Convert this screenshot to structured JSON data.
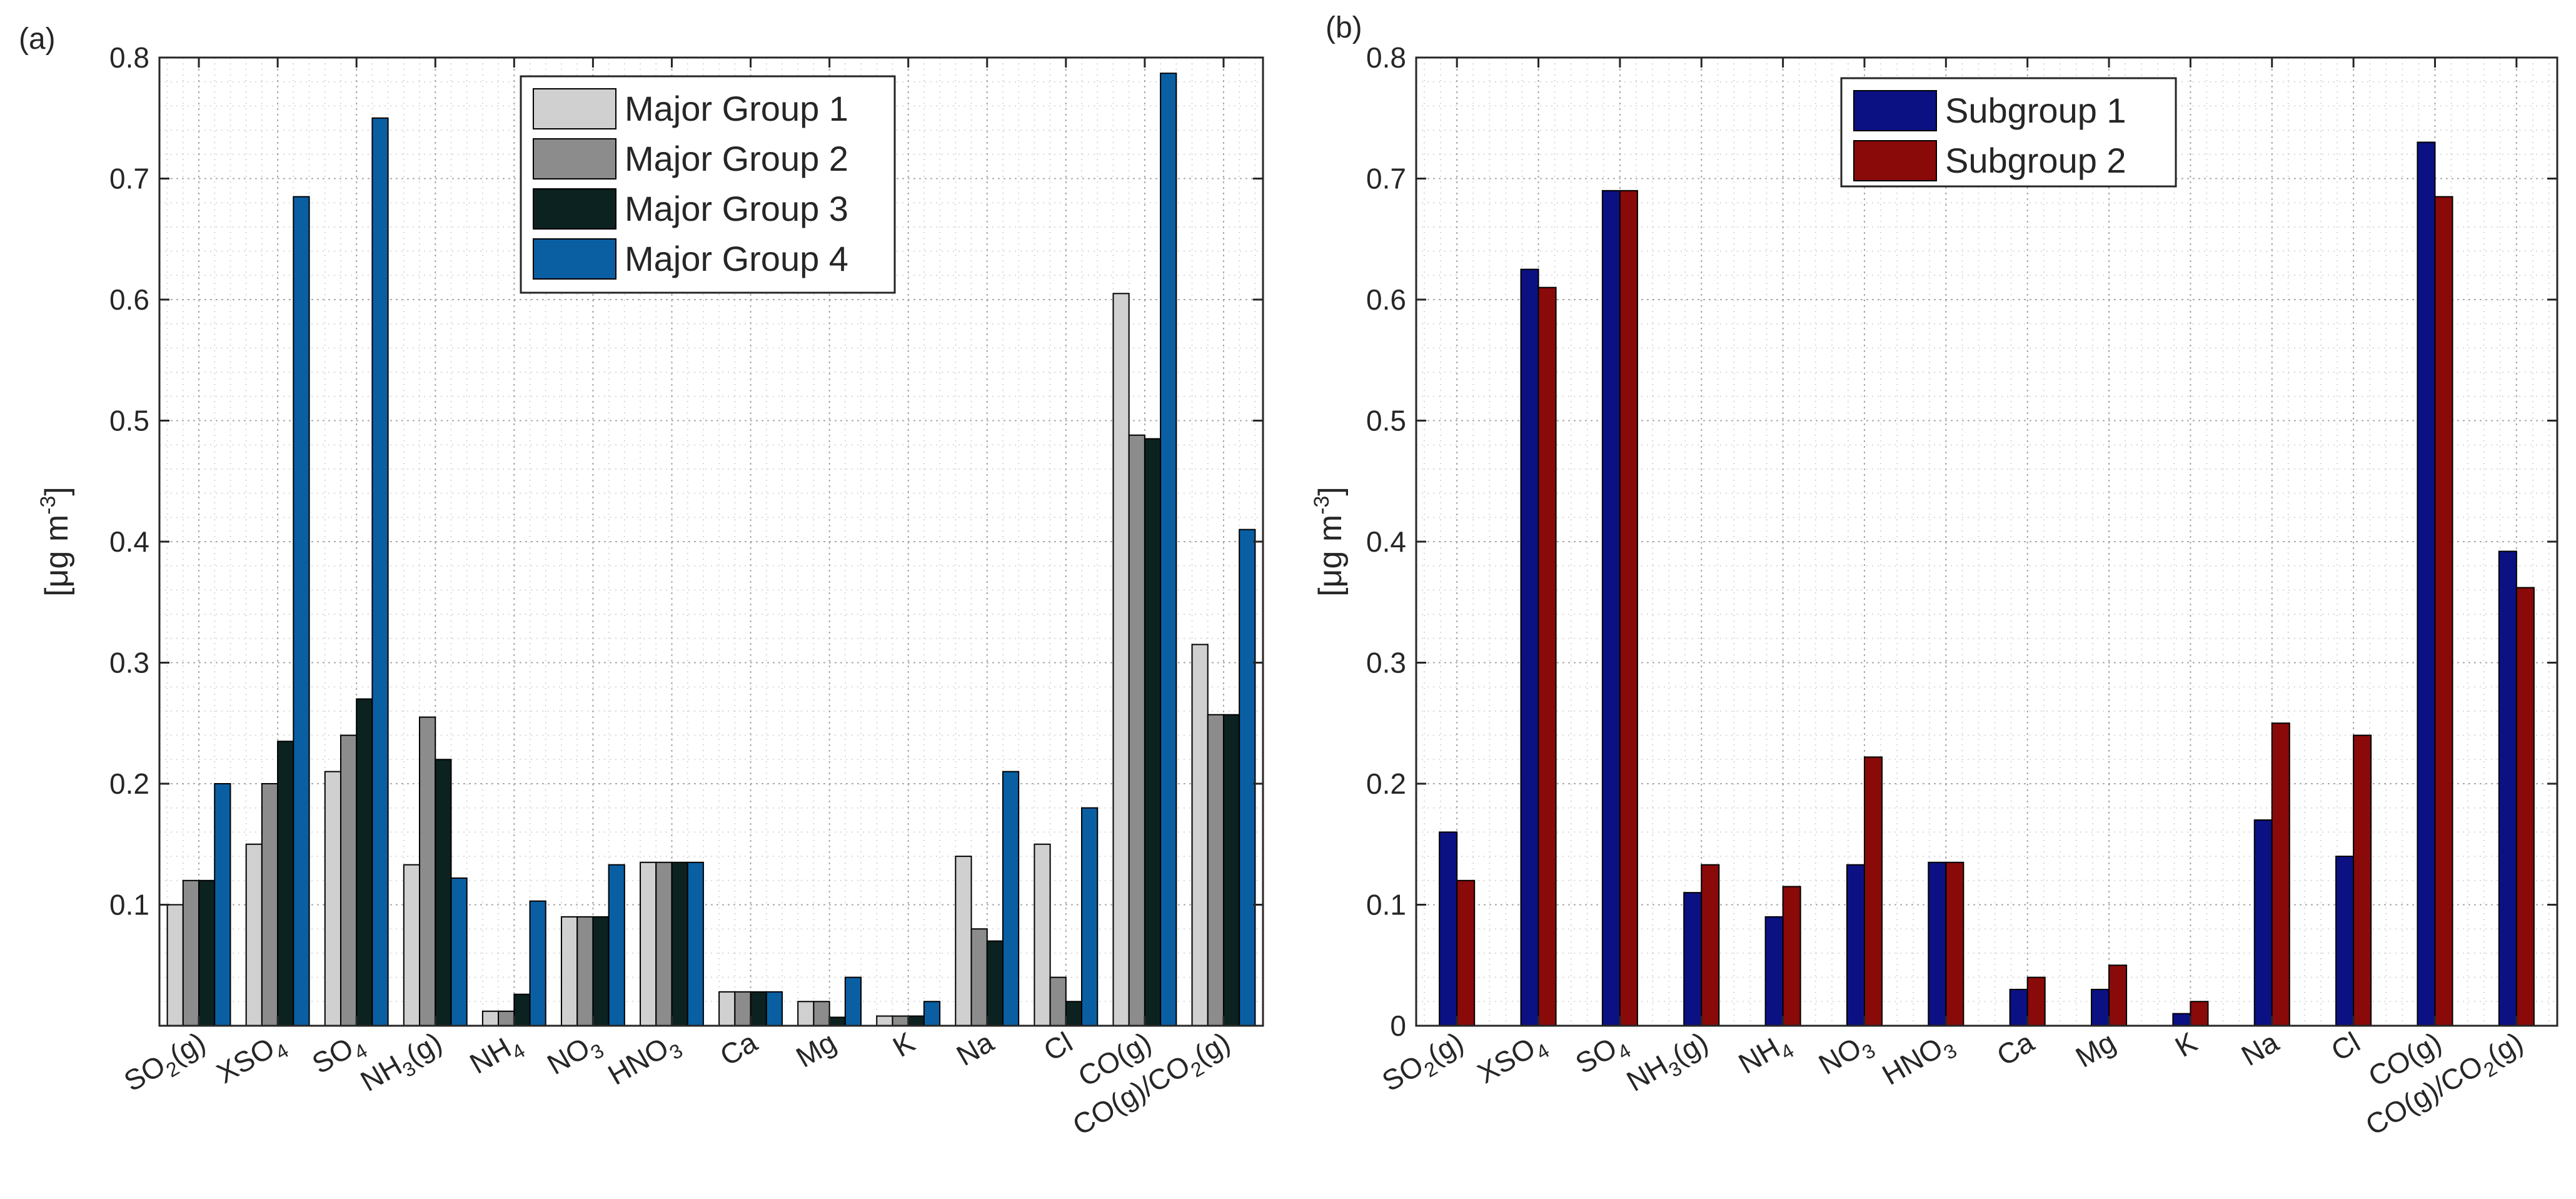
{
  "chart_data": [
    {
      "panel_label": "(a)",
      "type": "bar",
      "ylabel_base": "[μg m",
      "ylabel_sup": "-3",
      "ylabel_end": "]",
      "ylim": [
        0,
        0.8
      ],
      "yticks": [
        "0.1",
        "0.2",
        "0.3",
        "0.4",
        "0.5",
        "0.6",
        "0.7",
        "0.8"
      ],
      "grid": true,
      "legend_position": "top-center",
      "categories": [
        {
          "base": "SO",
          "sub": "2",
          "suffix": "(g)"
        },
        {
          "base": "XSO",
          "sub": "4",
          "suffix": ""
        },
        {
          "base": "SO",
          "sub": "4",
          "suffix": ""
        },
        {
          "base": "NH",
          "sub": "3",
          "suffix": "(g)"
        },
        {
          "base": "NH",
          "sub": "4",
          "suffix": ""
        },
        {
          "base": "NO",
          "sub": "3",
          "suffix": ""
        },
        {
          "base": "HNO",
          "sub": "3",
          "suffix": ""
        },
        {
          "base": "Ca",
          "sub": "",
          "suffix": ""
        },
        {
          "base": "Mg",
          "sub": "",
          "suffix": ""
        },
        {
          "base": "K",
          "sub": "",
          "suffix": ""
        },
        {
          "base": "Na",
          "sub": "",
          "suffix": ""
        },
        {
          "base": "Cl",
          "sub": "",
          "suffix": ""
        },
        {
          "base": "CO(g)",
          "sub": "",
          "suffix": ""
        },
        {
          "base": "CO(g)/CO",
          "sub": "2",
          "suffix": "(g)"
        }
      ],
      "series": [
        {
          "name": "Major Group 1",
          "color": "#d0d0d0",
          "values": [
            0.1,
            0.15,
            0.21,
            0.133,
            0.012,
            0.09,
            0.135,
            0.028,
            0.02,
            0.008,
            0.14,
            0.15,
            0.605,
            0.315
          ]
        },
        {
          "name": "Major Group 2",
          "color": "#8c8c8c",
          "values": [
            0.12,
            0.2,
            0.24,
            0.255,
            0.012,
            0.09,
            0.135,
            0.028,
            0.02,
            0.008,
            0.08,
            0.04,
            0.488,
            0.257
          ]
        },
        {
          "name": "Major Group 3",
          "color": "#0c2220",
          "values": [
            0.12,
            0.235,
            0.27,
            0.22,
            0.026,
            0.09,
            0.135,
            0.028,
            0.007,
            0.008,
            0.07,
            0.02,
            0.485,
            0.257
          ]
        },
        {
          "name": "Major Group 4",
          "color": "#0a5fa3",
          "values": [
            0.2,
            0.685,
            0.75,
            0.122,
            0.103,
            0.133,
            0.135,
            0.028,
            0.04,
            0.02,
            0.21,
            0.18,
            0.787,
            0.41
          ]
        }
      ]
    },
    {
      "panel_label": "(b)",
      "type": "bar",
      "ylabel_base": "[μg m",
      "ylabel_sup": "-3",
      "ylabel_end": "]",
      "ylim": [
        0,
        0.8
      ],
      "yticks": [
        "0",
        "0.1",
        "0.2",
        "0.3",
        "0.4",
        "0.5",
        "0.6",
        "0.7",
        "0.8"
      ],
      "grid": true,
      "legend_position": "top-center",
      "categories": [
        {
          "base": "SO",
          "sub": "2",
          "suffix": "(g)"
        },
        {
          "base": "XSO",
          "sub": "4",
          "suffix": ""
        },
        {
          "base": "SO",
          "sub": "4",
          "suffix": ""
        },
        {
          "base": "NH",
          "sub": "3",
          "suffix": "(g)"
        },
        {
          "base": "NH",
          "sub": "4",
          "suffix": ""
        },
        {
          "base": "NO",
          "sub": "3",
          "suffix": ""
        },
        {
          "base": "HNO",
          "sub": "3",
          "suffix": ""
        },
        {
          "base": "Ca",
          "sub": "",
          "suffix": ""
        },
        {
          "base": "Mg",
          "sub": "",
          "suffix": ""
        },
        {
          "base": "K",
          "sub": "",
          "suffix": ""
        },
        {
          "base": "Na",
          "sub": "",
          "suffix": ""
        },
        {
          "base": "Cl",
          "sub": "",
          "suffix": ""
        },
        {
          "base": "CO(g)",
          "sub": "",
          "suffix": ""
        },
        {
          "base": "CO(g)/CO",
          "sub": "2",
          "suffix": "(g)"
        }
      ],
      "series": [
        {
          "name": "Subgroup 1",
          "color": "#0b1183",
          "values": [
            0.16,
            0.625,
            0.69,
            0.11,
            0.09,
            0.133,
            0.135,
            0.03,
            0.03,
            0.01,
            0.17,
            0.14,
            0.73,
            0.392
          ]
        },
        {
          "name": "Subgroup 2",
          "color": "#8a0a0a",
          "values": [
            0.12,
            0.61,
            0.69,
            0.133,
            0.115,
            0.222,
            0.135,
            0.04,
            0.05,
            0.02,
            0.25,
            0.24,
            0.685,
            0.362
          ]
        }
      ]
    }
  ]
}
